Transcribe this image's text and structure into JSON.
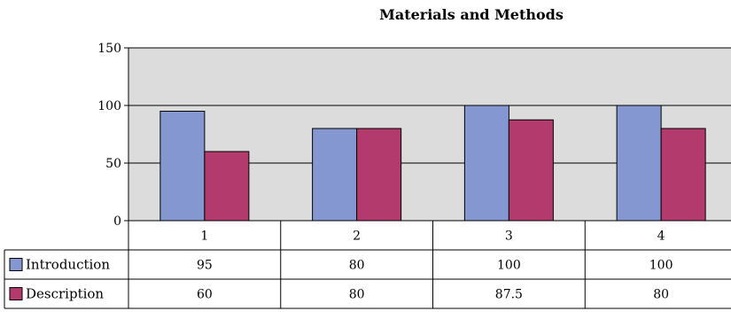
{
  "chart_data": {
    "type": "bar",
    "title": "Materials and Methods",
    "categories": [
      "1",
      "2",
      "3",
      "4"
    ],
    "series": [
      {
        "name": "Introduction",
        "values": [
          95,
          80,
          100,
          100
        ],
        "labels": [
          "95",
          "80",
          "100",
          "100"
        ],
        "color": "#8497d0"
      },
      {
        "name": "Description",
        "values": [
          60,
          80,
          87.5,
          80
        ],
        "labels": [
          "60",
          "80",
          "87.5",
          "80"
        ],
        "color": "#b33a6c"
      }
    ],
    "ylim": [
      0,
      150
    ],
    "yticks": [
      0,
      50,
      100,
      150
    ],
    "grid": true,
    "plot_background": "#dcdcdc",
    "legend": "data-table-left"
  }
}
